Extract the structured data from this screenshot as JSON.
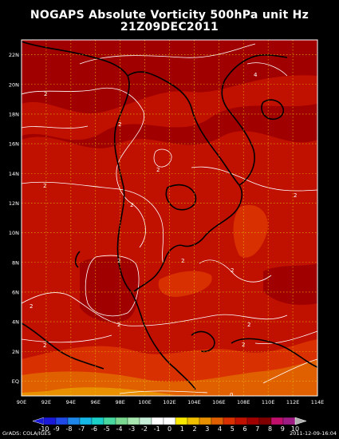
{
  "title_line1": "NOGAPS Absolute Vorticity 500hPa unit Hz",
  "title_line2": "21Z09DEC2011",
  "lon_labels": [
    "90E",
    "92E",
    "94E",
    "96E",
    "98E",
    "100E",
    "102E",
    "104E",
    "106E",
    "108E",
    "110E",
    "112E",
    "114E"
  ],
  "lat_labels": [
    "EQ",
    "2N",
    "4N",
    "6N",
    "8N",
    "10N",
    "12N",
    "14N",
    "16N",
    "18N",
    "20N",
    "22N"
  ],
  "colorbar_labels": [
    "-10",
    "-9",
    "-8",
    "-7",
    "-6",
    "-5",
    "-4",
    "-3",
    "-2",
    "-1",
    "0",
    "1",
    "2",
    "3",
    "4",
    "5",
    "6",
    "7",
    "8",
    "9",
    "10"
  ],
  "colorbar_colors": [
    "#1a1ad8",
    "#1f4ae8",
    "#1d86e8",
    "#16b8e8",
    "#1ad0c8",
    "#48d8a0",
    "#7ad890",
    "#a8e8b0",
    "#c8f0d8",
    "#ffffff",
    "#ffffff",
    "#f8e800",
    "#f0c000",
    "#e89000",
    "#e06000",
    "#d83000",
    "#c01000",
    "#a00000",
    "#800000",
    "#c0106c",
    "#9e1c84"
  ],
  "contour_labels": [
    "2",
    "2",
    "2",
    "2",
    "2",
    "2",
    "2",
    "2",
    "2",
    "2",
    "2",
    "2",
    "2",
    "2",
    "4",
    "0"
  ],
  "footer_left": "GrADS: COLA/IGES",
  "footer_right": "2011-12-09-16:04"
}
